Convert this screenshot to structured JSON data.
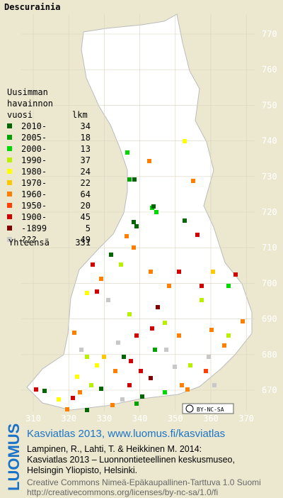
{
  "map": {
    "title": "Descurainia",
    "northing_labels": [
      "770",
      "760",
      "750",
      "740",
      "730",
      "720",
      "710",
      "700",
      "690",
      "680",
      "670"
    ],
    "easting_labels": [
      "310",
      "320",
      "330",
      "340",
      "350",
      "360",
      "370"
    ],
    "license_badge": "BY-NC-SA"
  },
  "legend": {
    "header": [
      "Uusimman",
      "havainnon",
      "vuosi"
    ],
    "count_header": "lkm",
    "items": [
      {
        "label": "2010-",
        "count": "34",
        "color": "#006400"
      },
      {
        "label": "2005-",
        "count": "18",
        "color": "#00a000"
      },
      {
        "label": "2000-",
        "count": "13",
        "color": "#00d800"
      },
      {
        "label": "1990-",
        "count": "37",
        "color": "#b8f000"
      },
      {
        "label": "1980-",
        "count": "24",
        "color": "#ffff00"
      },
      {
        "label": "1970-",
        "count": "22",
        "color": "#ffc800"
      },
      {
        "label": "1960-",
        "count": "64",
        "color": "#ff8000"
      },
      {
        "label": "1950-",
        "count": "20",
        "color": "#ff4000"
      },
      {
        "label": "1900-",
        "count": "45",
        "color": "#d00000"
      },
      {
        "label": "-1899",
        "count": "5",
        "color": "#800000"
      },
      {
        "label": "???",
        "count": "49",
        "color": "#c8c8c8"
      }
    ],
    "total_label": "Yhteensä",
    "total": "331"
  },
  "footer": {
    "brand": "LUOMUS",
    "heading": "Kasviatlas 2013, www.luomus.fi/kasviatlas",
    "citation": [
      "Lampinen, R., Lahti, T. & Heikkinen M. 2014:",
      "Kasviatlas 2013 – Luonnontieteellinen keskusmuseo,",
      "Helsingin Yliopisto, Helsinki."
    ],
    "license": [
      "Creative Commons Nimeä-Epäkaupallinen-Tarttuva 1.0 Suomi",
      "http://creativecommons.org/licenses/by-nc-sa/1.0/fi"
    ]
  }
}
